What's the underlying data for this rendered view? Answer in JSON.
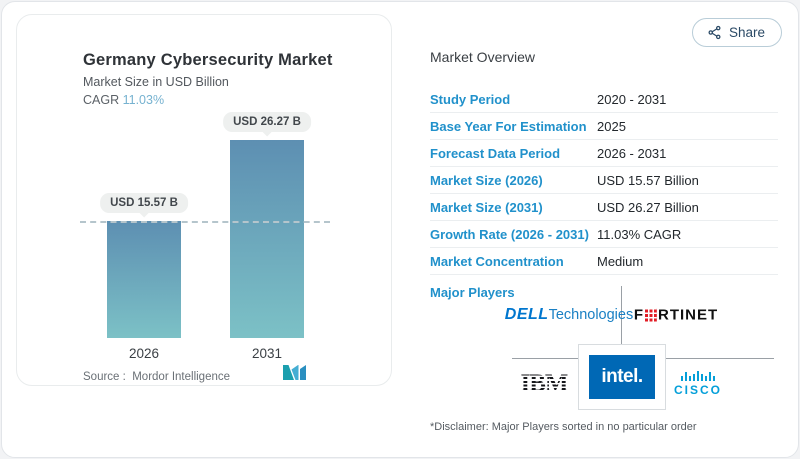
{
  "share": {
    "label": "Share"
  },
  "chart_data": {
    "type": "bar",
    "title": "Germany Cybersecurity Market",
    "subtitle": "Market Size in USD Billion",
    "cagr_label": "CAGR",
    "cagr_value": "11.03%",
    "categories": [
      "2026",
      "2031"
    ],
    "values": [
      15.57,
      26.27
    ],
    "bar_labels": [
      "USD 15.57 B",
      "USD 26.27 B"
    ],
    "unit": "USD Billion",
    "reference_line": 15.57,
    "ylim": [
      0,
      26.27
    ],
    "grid": "off",
    "legend": "none",
    "colors": {
      "bar_top": "#5d8fb2",
      "bar_bottom": "#7cc1c6"
    },
    "source_label": "Source :",
    "source_value": "Mordor Intelligence"
  },
  "overview": {
    "heading": "Market Overview",
    "rows": [
      {
        "label": "Study Period",
        "value": "2020 - 2031"
      },
      {
        "label": "Base Year For Estimation",
        "value": "2025"
      },
      {
        "label": "Forecast Data Period",
        "value": "2026 - 2031"
      },
      {
        "label": "Market Size (2026)",
        "value": "USD 15.57 Billion"
      },
      {
        "label": "Market Size (2031)",
        "value": "USD 26.27 Billion"
      },
      {
        "label": "Growth Rate (2026 - 2031)",
        "value": "11.03% CAGR"
      },
      {
        "label": "Market Concentration",
        "value": "Medium"
      }
    ],
    "major_players": {
      "label": "Major Players",
      "dell": {
        "name": "Dell Technologies",
        "part1": "DELL",
        "part2": "Technologies"
      },
      "fortinet": {
        "name": "Fortinet",
        "part1": "F",
        "part2": "RTINET"
      },
      "ibm": {
        "name": "IBM",
        "text": "IBM"
      },
      "intel": {
        "name": "Intel",
        "text": "intel."
      },
      "cisco": {
        "name": "Cisco",
        "text": "CISCO"
      }
    },
    "disclaimer": "*Disclaimer: Major Players sorted in no particular order"
  }
}
